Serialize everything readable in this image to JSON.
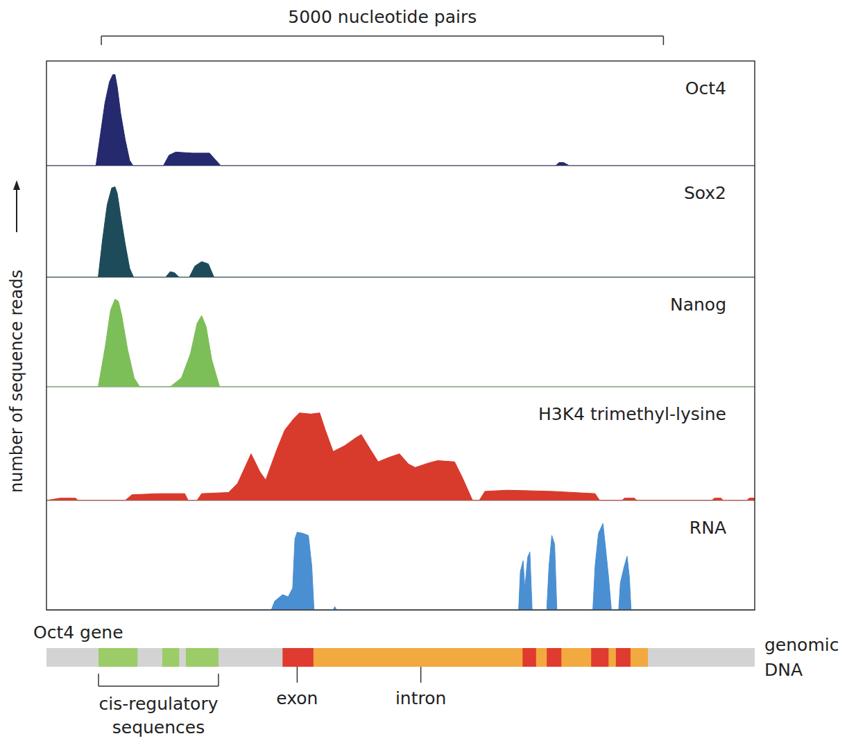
{
  "chart_data": [
    {
      "type": "area",
      "title": "Oct4",
      "color": "#252a6e",
      "xlim": [
        0,
        6300
      ],
      "ylim": [
        0,
        100
      ],
      "tick_labels": false,
      "x": [
        0,
        440,
        480,
        520,
        560,
        590,
        610,
        630,
        660,
        700,
        740,
        770,
        1040,
        1090,
        1150,
        1300,
        1450,
        1500,
        1550,
        4530,
        4560,
        4600,
        4650,
        6300
      ],
      "values": [
        0,
        0,
        30,
        60,
        80,
        87,
        87,
        75,
        50,
        25,
        5,
        0,
        0,
        10,
        13,
        12,
        12,
        6,
        0,
        0,
        3,
        3,
        0,
        0
      ]
    },
    {
      "type": "area",
      "title": "Sox2",
      "color": "#1d4b5a",
      "xlim": [
        0,
        6300
      ],
      "ylim": [
        0,
        100
      ],
      "tick_labels": false,
      "x": [
        0,
        460,
        500,
        540,
        580,
        610,
        630,
        660,
        700,
        740,
        775,
        1060,
        1100,
        1140,
        1180,
        1270,
        1320,
        1380,
        1440,
        1490,
        6300
      ],
      "values": [
        0,
        0,
        35,
        65,
        80,
        81,
        75,
        55,
        30,
        8,
        0,
        0,
        5,
        4,
        0,
        0,
        10,
        14,
        12,
        0,
        0
      ]
    },
    {
      "type": "area",
      "title": "Nanog",
      "color": "#7cbf58",
      "xlim": [
        0,
        6300
      ],
      "ylim": [
        0,
        100
      ],
      "tick_labels": false,
      "x": [
        0,
        460,
        520,
        570,
        610,
        640,
        670,
        720,
        780,
        830,
        1100,
        1200,
        1280,
        1340,
        1380,
        1420,
        1470,
        1540,
        6300
      ],
      "values": [
        0,
        0,
        35,
        70,
        80,
        78,
        65,
        35,
        8,
        0,
        0,
        8,
        30,
        58,
        65,
        55,
        25,
        0,
        0
      ]
    },
    {
      "type": "area",
      "title": "H3K4 trimethyl-lysine",
      "color": "#d83a2c",
      "xlim": [
        0,
        6300
      ],
      "ylim": [
        0,
        100
      ],
      "tick_labels": false,
      "x": [
        0,
        120,
        260,
        280,
        700,
        760,
        1000,
        1230,
        1260,
        1340,
        1380,
        1620,
        1700,
        1820,
        1900,
        1950,
        2050,
        2120,
        2200,
        2250,
        2350,
        2430,
        2480,
        2550,
        2650,
        2750,
        2800,
        2880,
        2950,
        3050,
        3140,
        3220,
        3280,
        3400,
        3480,
        3630,
        3700,
        3790,
        3850,
        3900,
        4100,
        4500,
        4880,
        4920,
        5120,
        5140,
        5230,
        5250,
        5920,
        5940,
        6000,
        6020,
        6230,
        6250,
        6300
      ],
      "values": [
        0,
        2,
        2,
        0,
        0,
        5,
        6,
        6,
        0,
        0,
        6,
        7,
        15,
        41,
        25,
        18,
        45,
        62,
        72,
        77,
        76,
        77,
        62,
        43,
        48,
        55,
        58,
        45,
        34,
        38,
        41,
        32,
        29,
        33,
        35,
        34,
        20,
        0,
        0,
        8,
        9,
        8,
        6,
        0,
        0,
        2,
        2,
        0,
        0,
        2,
        2,
        0,
        0,
        2,
        2
      ]
    },
    {
      "type": "area",
      "title": "RNA",
      "color": "#4a8fd2",
      "xlim": [
        0,
        6300
      ],
      "ylim": [
        0,
        100
      ],
      "tick_labels": false,
      "x": [
        0,
        2000,
        2030,
        2100,
        2150,
        2190,
        2210,
        2230,
        2280,
        2330,
        2360,
        2380,
        2550,
        2565,
        2580,
        4200,
        4215,
        4240,
        4255,
        4280,
        4300,
        4320,
        4450,
        4470,
        4495,
        4520,
        4540,
        4860,
        4880,
        4910,
        4950,
        4975,
        5000,
        5025,
        5090,
        5105,
        5140,
        5165,
        5185,
        5200,
        6300
      ],
      "values": [
        0,
        0,
        8,
        14,
        12,
        20,
        65,
        71,
        70,
        68,
        40,
        0,
        0,
        3,
        0,
        0,
        35,
        45,
        20,
        48,
        53,
        0,
        0,
        40,
        68,
        60,
        0,
        0,
        40,
        70,
        79,
        55,
        30,
        0,
        0,
        25,
        40,
        49,
        30,
        0,
        0
      ]
    }
  ],
  "y_axis_label": "number of sequence reads",
  "scale_bar": {
    "label": "5000 nucleotide pairs",
    "start": 488,
    "end": 5488
  },
  "gene": {
    "title": "Oct4 gene",
    "label": "genomic DNA",
    "segments": [
      {
        "start": 0,
        "end": 6300,
        "color": "#d3d3d3"
      },
      {
        "start": 463,
        "end": 810,
        "color": "#9ccc68"
      },
      {
        "start": 1030,
        "end": 1180,
        "color": "#9ccc68"
      },
      {
        "start": 1240,
        "end": 1530,
        "color": "#9ccc68"
      },
      {
        "start": 2375,
        "end": 5350,
        "color": "#f2a93f"
      },
      {
        "start": 2100,
        "end": 2375,
        "color": "#e03b30"
      },
      {
        "start": 4235,
        "end": 4355,
        "color": "#e03b30"
      },
      {
        "start": 4450,
        "end": 4580,
        "color": "#e03b30"
      },
      {
        "start": 4845,
        "end": 5000,
        "color": "#e03b30"
      },
      {
        "start": 5065,
        "end": 5195,
        "color": "#e03b30"
      }
    ],
    "annotations": [
      {
        "text": "exon",
        "at": 2230
      },
      {
        "text": "intron",
        "at": 3330
      },
      {
        "text": "cis-regulatory sequences",
        "start": 463,
        "end": 1530
      }
    ]
  }
}
